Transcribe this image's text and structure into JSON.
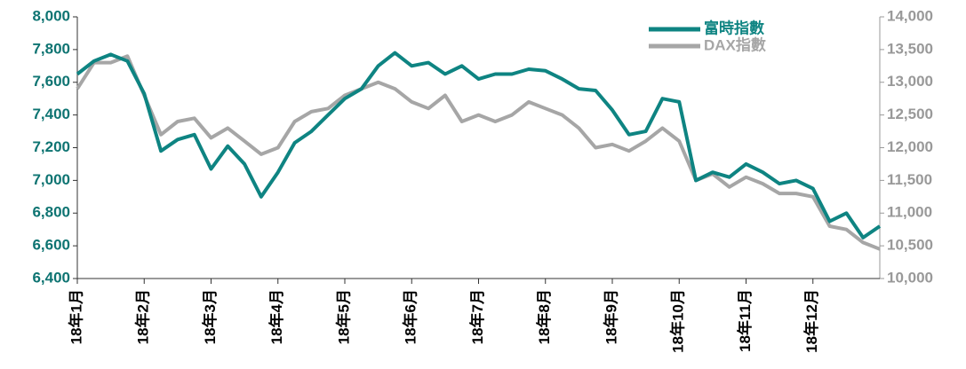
{
  "chart_data": {
    "type": "line",
    "categories": [
      "18年1月",
      null,
      null,
      null,
      "18年2月",
      null,
      null,
      null,
      "18年3月",
      null,
      null,
      null,
      "18年4月",
      null,
      null,
      null,
      "18年5月",
      null,
      null,
      null,
      "18年6月",
      null,
      null,
      null,
      "18年7月",
      null,
      null,
      null,
      "18年8月",
      null,
      null,
      null,
      "18年9月",
      null,
      null,
      null,
      "18年10月",
      null,
      null,
      null,
      "18年11月",
      null,
      null,
      null,
      "18年12月",
      null,
      null,
      null,
      null
    ],
    "series": [
      {
        "name": "富時指數",
        "color": "#0e8482",
        "values": [
          7650,
          7730,
          7770,
          7730,
          7530,
          7180,
          7250,
          7280,
          7070,
          7210,
          7100,
          6900,
          7050,
          7230,
          7300,
          7400,
          7500,
          7560,
          7700,
          7780,
          7700,
          7720,
          7650,
          7700,
          7620,
          7650,
          7650,
          7680,
          7670,
          7620,
          7560,
          7550,
          7430,
          7280,
          7300,
          7500,
          7480,
          7000,
          7050,
          7020,
          7100,
          7050,
          6980,
          7000,
          6950,
          6750,
          6800,
          6650,
          6720
        ]
      },
      {
        "name": "DAX指數",
        "color": "#a6a6a6",
        "axis": "y2",
        "values": [
          12900,
          13300,
          13300,
          13400,
          12800,
          12200,
          12400,
          12450,
          12150,
          12300,
          12100,
          11900,
          12000,
          12400,
          12550,
          12600,
          12800,
          12900,
          13000,
          12900,
          12700,
          12600,
          12800,
          12400,
          12500,
          12400,
          12500,
          12700,
          12600,
          12500,
          12300,
          12000,
          12050,
          11950,
          12100,
          12300,
          12100,
          11500,
          11600,
          11400,
          11550,
          11450,
          11300,
          11300,
          11250,
          10800,
          10750,
          10550,
          10450
        ]
      }
    ],
    "ylim": [
      6400,
      8000
    ],
    "yticks": [
      {
        "value": 6400,
        "label": "6,400"
      },
      {
        "value": 6600,
        "label": "6,600"
      },
      {
        "value": 6800,
        "label": "6,800"
      },
      {
        "value": 7000,
        "label": "7,000"
      },
      {
        "value": 7200,
        "label": "7,200"
      },
      {
        "value": 7400,
        "label": "7,400"
      },
      {
        "value": 7600,
        "label": "7,600"
      },
      {
        "value": 7800,
        "label": "7,800"
      },
      {
        "value": 8000,
        "label": "8,000"
      }
    ],
    "y2lim": [
      10000,
      14000
    ],
    "y2ticks": [
      {
        "value": 10000,
        "label": "10,000"
      },
      {
        "value": 10500,
        "label": "10,500"
      },
      {
        "value": 11000,
        "label": "11,000"
      },
      {
        "value": 11500,
        "label": "11,500"
      },
      {
        "value": 12000,
        "label": "12,000"
      },
      {
        "value": 12500,
        "label": "12,500"
      },
      {
        "value": 13000,
        "label": "13,000"
      },
      {
        "value": 13500,
        "label": "13,500"
      },
      {
        "value": 14000,
        "label": "14,000"
      }
    ],
    "legend": "top-right"
  }
}
